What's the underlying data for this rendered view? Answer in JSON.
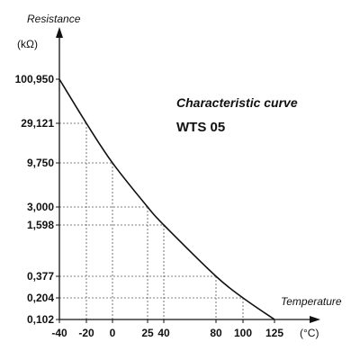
{
  "chart_data": {
    "type": "line",
    "title": "Characteristic curve",
    "subtitle": "WTS 05",
    "ylabel": "Resistance",
    "yunit": "(kΩ)",
    "xlabel": "Temperature",
    "xunit": "(°C)",
    "x_ticks": [
      "-40",
      "-20",
      "0",
      "25",
      "40",
      "80",
      "100",
      "125"
    ],
    "y_ticks": [
      "100,950",
      "29,121",
      "9,750",
      "3,000",
      "1,598",
      "0,377",
      "0,204",
      "0,102"
    ],
    "x_range": [
      -40,
      125
    ],
    "y_scale": "log",
    "grid": "dashed lines from each data point to the axes",
    "series": [
      {
        "x": [
          -40,
          -20,
          0,
          25,
          40,
          80,
          100,
          125
        ],
        "y": [
          100.95,
          29.121,
          9.75,
          3.0,
          1.598,
          0.377,
          0.204,
          0.102
        ]
      }
    ],
    "colors": {
      "line": "#111111",
      "axis": "#111111",
      "grid": "#555555"
    }
  }
}
